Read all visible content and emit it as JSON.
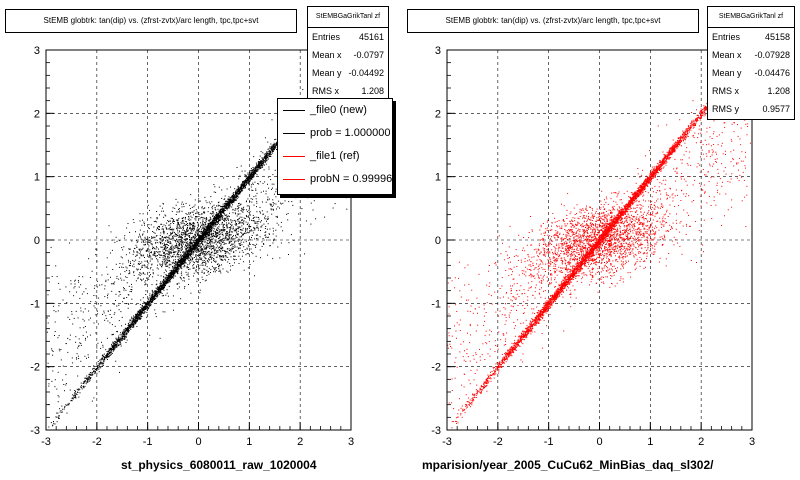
{
  "chart_data": [
    {
      "type": "scatter",
      "title": "StEMB globtrk: tan(dip) vs. (zfrst-zvtx)/arc length, tpc,tpc+svt",
      "xlabel": "st_physics_6080011_raw_1020004",
      "xlim": [
        -3,
        3
      ],
      "ylim": [
        -3,
        3
      ],
      "xticks": [
        "-3",
        "-2",
        "-1",
        "0",
        "1",
        "2",
        "3"
      ],
      "yticks": [
        "-3",
        "-2",
        "-1",
        "0",
        "1",
        "2",
        "3"
      ],
      "grid": true,
      "marker_color": "#000000",
      "stats": {
        "name": "StEMBGaGrikTanl zf",
        "rows": [
          {
            "label": "Entries",
            "value": "45161"
          },
          {
            "label": "Mean x",
            "value": "-0.0797"
          },
          {
            "label": "Mean y",
            "value": "-0.04492"
          },
          {
            "label": "RMS x",
            "value": "1.208"
          }
        ]
      },
      "legend": {
        "placement": "top-right",
        "entries": [
          {
            "label": "_file0 (new)",
            "color": "#000000"
          },
          {
            "label": "prob = 1.000000",
            "color": "#000000"
          },
          {
            "label": "_file1 (ref)",
            "color": "#ff0000"
          },
          {
            "label": "probN = 0.999960",
            "color": "#ff0000"
          }
        ]
      }
    },
    {
      "type": "scatter",
      "title": "StEMB globtrk: tan(dip) vs. (zfrst-zvtx)/arc length, tpc,tpc+svt",
      "xlabel": "mparision/year_2005_CuCu62_MinBias_daq_sl302/",
      "xlim": [
        -3,
        3
      ],
      "ylim": [
        -3,
        3
      ],
      "xticks": [
        "-3",
        "-2",
        "-1",
        "0",
        "1",
        "2",
        "3"
      ],
      "yticks": [
        "-3",
        "-2",
        "-1",
        "0",
        "1",
        "2",
        "3"
      ],
      "grid": true,
      "marker_color": "#ff0000",
      "stats": {
        "name": "StEMBGaGrikTanl zf",
        "rows": [
          {
            "label": "Entries",
            "value": "45158"
          },
          {
            "label": "Mean x",
            "value": "-0.07928"
          },
          {
            "label": "Mean y",
            "value": "-0.04476"
          },
          {
            "label": "RMS x",
            "value": "1.208"
          },
          {
            "label": "RMS y",
            "value": "0.9577"
          }
        ]
      }
    }
  ]
}
